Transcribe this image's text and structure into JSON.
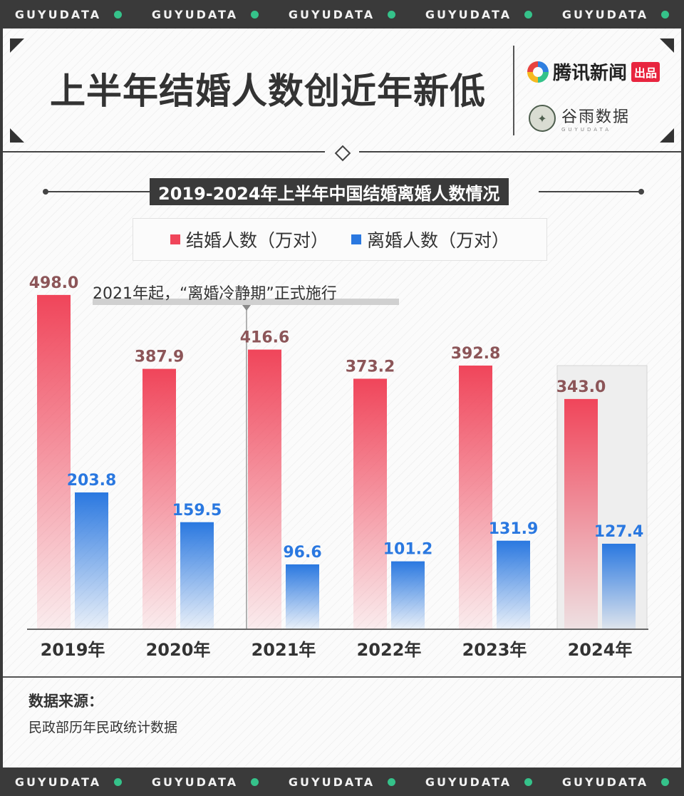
{
  "band_text": "GUYUDATA",
  "header": {
    "title": "上半年结婚人数创近年新低",
    "logo_tencent": "腾讯新闻",
    "logo_tencent_badge": "出品",
    "logo_guyu": "谷雨数据",
    "logo_guyu_sub": "GUYUDATA"
  },
  "annotation": "2021年起，“离婚冷静期”正式施行",
  "source": {
    "label": "数据来源：",
    "text": "民政部历年民政统计数据"
  },
  "colors": {
    "marriage": "#f0455a",
    "divorce": "#2a78e0",
    "marriage_label": "#8c5558",
    "divorce_label": "#2a78e0",
    "accent_green": "#35c28a"
  },
  "chart_data": {
    "type": "bar",
    "title": "2019-2024年上半年中国结婚离婚人数情况",
    "categories": [
      "2019年",
      "2020年",
      "2021年",
      "2022年",
      "2023年",
      "2024年"
    ],
    "series": [
      {
        "name": "结婚人数（万对）",
        "values": [
          498.0,
          387.9,
          416.6,
          373.2,
          392.8,
          343.0
        ]
      },
      {
        "name": "离婚人数（万对）",
        "values": [
          203.8,
          159.5,
          96.6,
          101.2,
          131.9,
          127.4
        ]
      }
    ],
    "ylim": [
      0,
      500
    ],
    "highlight_category": "2024年",
    "legend_position": "top",
    "grid": false
  }
}
